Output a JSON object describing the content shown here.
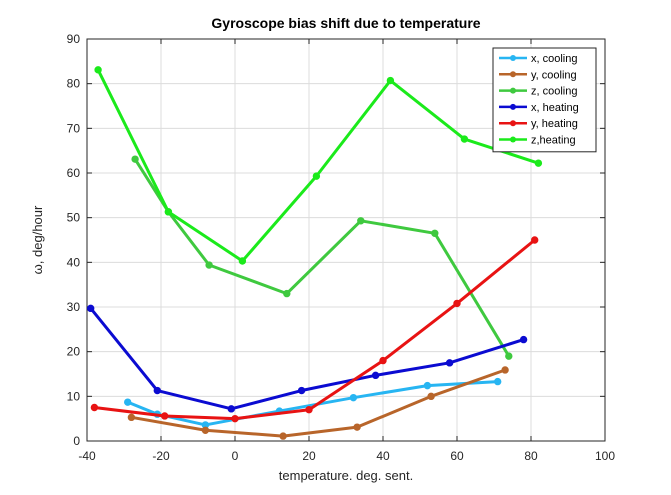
{
  "chart_data": {
    "type": "line",
    "title": "Gyroscope bias shift due to temperature",
    "xlabel": "temperature. deg. sent.",
    "ylabel": "ω, deg/hour",
    "xlim": [
      -40,
      100
    ],
    "ylim": [
      0,
      90
    ],
    "xticks": [
      -40,
      -20,
      0,
      20,
      40,
      60,
      80,
      100
    ],
    "yticks": [
      0,
      10,
      20,
      30,
      40,
      50,
      60,
      70,
      80,
      90
    ],
    "grid": true,
    "legend_position": "top-right",
    "series": [
      {
        "name": "x, cooling",
        "color": "#27b5f2",
        "points": [
          [
            -29,
            8.7
          ],
          [
            -21,
            6.0
          ],
          [
            -8,
            3.6
          ],
          [
            12,
            6.7
          ],
          [
            32,
            9.7
          ],
          [
            52,
            12.4
          ],
          [
            71,
            13.3
          ]
        ]
      },
      {
        "name": "y, cooling",
        "color": "#b8652a",
        "points": [
          [
            -28,
            5.3
          ],
          [
            -8,
            2.4
          ],
          [
            13,
            1.1
          ],
          [
            33,
            3.1
          ],
          [
            53,
            10.0
          ],
          [
            73,
            15.9
          ]
        ]
      },
      {
        "name": "z, cooling",
        "color": "#3fc93f",
        "points": [
          [
            -27,
            63.1
          ],
          [
            -18,
            51.3
          ],
          [
            -7,
            39.4
          ],
          [
            14,
            33.0
          ],
          [
            34,
            49.3
          ],
          [
            54,
            46.5
          ],
          [
            74,
            19.0
          ]
        ]
      },
      {
        "name": "x, heating",
        "color": "#0b0bd1",
        "points": [
          [
            -39,
            29.7
          ],
          [
            -21,
            11.3
          ],
          [
            -1,
            7.2
          ],
          [
            18,
            11.3
          ],
          [
            38,
            14.7
          ],
          [
            58,
            17.5
          ],
          [
            78,
            22.7
          ]
        ]
      },
      {
        "name": "y, heating",
        "color": "#e81313",
        "points": [
          [
            -38,
            7.5
          ],
          [
            -19,
            5.6
          ],
          [
            0,
            5.0
          ],
          [
            20,
            7.0
          ],
          [
            40,
            18.0
          ],
          [
            60,
            30.8
          ],
          [
            81,
            45.0
          ]
        ]
      },
      {
        "name": "z,heating",
        "color": "#1bea1b",
        "points": [
          [
            -37,
            83.1
          ],
          [
            -18,
            51.3
          ],
          [
            2,
            40.3
          ],
          [
            22,
            59.3
          ],
          [
            42,
            80.7
          ],
          [
            62,
            67.6
          ],
          [
            82,
            62.2
          ]
        ]
      }
    ]
  }
}
